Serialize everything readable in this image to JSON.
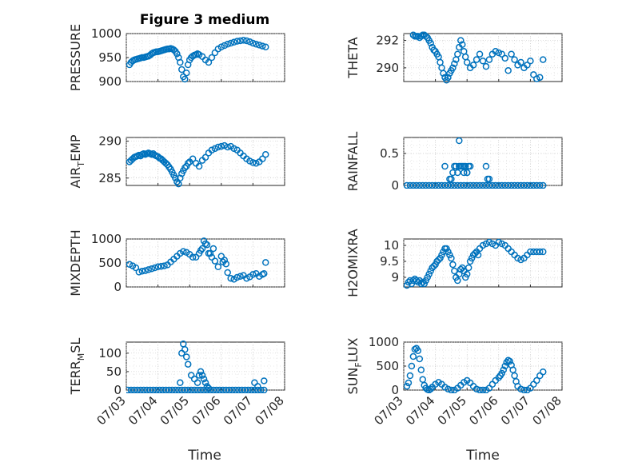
{
  "figure": {
    "title": "Figure 3 medium"
  },
  "colors": {
    "marker": "#0072bd",
    "axes": "#262626",
    "grid": "#bfbfbf"
  },
  "chart_data": [
    {
      "type": "scatter",
      "ylabel": "PRESSURE",
      "title": "Figure 3 medium",
      "xlim": [
        "07/03",
        "07/08"
      ],
      "ylim": [
        900,
        1000
      ],
      "yticks": [
        900,
        950,
        1000
      ],
      "xticks": [
        "07/03",
        "07/04",
        "07/05",
        "07/06",
        "07/07",
        "07/08"
      ],
      "grid": true,
      "x": [
        0.1,
        0.15,
        0.2,
        0.25,
        0.3,
        0.35,
        0.4,
        0.45,
        0.5,
        0.55,
        0.6,
        0.65,
        0.7,
        0.75,
        0.8,
        0.85,
        0.9,
        0.95,
        1.0,
        1.05,
        1.1,
        1.15,
        1.2,
        1.25,
        1.3,
        1.35,
        1.4,
        1.45,
        1.5,
        1.55,
        1.6,
        1.65,
        1.7,
        1.75,
        1.8,
        1.85,
        1.9,
        1.95,
        2.0,
        2.05,
        2.1,
        2.15,
        2.2,
        2.25,
        2.3,
        2.4,
        2.5,
        2.6,
        2.7,
        2.8,
        2.9,
        3.0,
        3.1,
        3.2,
        3.3,
        3.4,
        3.5,
        3.6,
        3.7,
        3.8,
        3.9,
        4.0,
        4.1,
        4.2,
        4.3,
        4.4
      ],
      "y": [
        935,
        940,
        943,
        945,
        946,
        947,
        948,
        949,
        950,
        950,
        951,
        952,
        953,
        955,
        958,
        960,
        961,
        962,
        962,
        963,
        964,
        965,
        966,
        967,
        968,
        968,
        969,
        968,
        966,
        963,
        958,
        950,
        940,
        925,
        910,
        905,
        918,
        935,
        945,
        950,
        953,
        955,
        956,
        958,
        956,
        952,
        945,
        940,
        950,
        960,
        968,
        972,
        975,
        978,
        980,
        982,
        984,
        985,
        986,
        985,
        983,
        980,
        978,
        976,
        974,
        972
      ]
    },
    {
      "type": "scatter",
      "ylabel": "THETA",
      "xlim": [
        "07/03",
        "07/08"
      ],
      "ylim": [
        289,
        292.5
      ],
      "yticks": [
        290,
        292
      ],
      "xticks": [
        "07/03",
        "07/04",
        "07/05",
        "07/06",
        "07/07",
        "07/08"
      ],
      "grid": true,
      "x": [
        0.3,
        0.35,
        0.4,
        0.45,
        0.5,
        0.55,
        0.6,
        0.65,
        0.7,
        0.75,
        0.8,
        0.85,
        0.9,
        0.95,
        1.0,
        1.05,
        1.1,
        1.15,
        1.2,
        1.25,
        1.3,
        1.35,
        1.4,
        1.45,
        1.5,
        1.55,
        1.6,
        1.65,
        1.7,
        1.75,
        1.8,
        1.85,
        1.9,
        1.95,
        2.0,
        2.1,
        2.2,
        2.3,
        2.4,
        2.5,
        2.6,
        2.7,
        2.8,
        2.9,
        3.0,
        3.1,
        3.2,
        3.3,
        3.4,
        3.5,
        3.6,
        3.7,
        3.8,
        3.9,
        4.0,
        4.1,
        4.2,
        4.3,
        4.4
      ],
      "y": [
        292.4,
        292.3,
        292.3,
        292.3,
        292.2,
        292.3,
        292.4,
        292.4,
        292.3,
        292.2,
        292.0,
        291.8,
        291.5,
        291.3,
        291.2,
        291.0,
        290.8,
        290.4,
        290.0,
        289.6,
        289.3,
        289.1,
        289.3,
        289.6,
        289.8,
        290.0,
        290.3,
        290.6,
        291.0,
        291.5,
        292.0,
        291.7,
        291.2,
        290.8,
        290.4,
        290.0,
        290.2,
        290.6,
        291.0,
        290.5,
        290.1,
        290.6,
        291.0,
        291.2,
        291.1,
        291.0,
        290.7,
        289.8,
        291.0,
        290.6,
        290.2,
        290.4,
        290.0,
        290.2,
        290.5,
        289.5,
        289.2,
        289.3,
        290.6
      ]
    },
    {
      "type": "scatter",
      "ylabel": "AIR_TEMP",
      "xlim": [
        "07/03",
        "07/08"
      ],
      "ylim": [
        284,
        290.5
      ],
      "yticks": [
        285,
        290
      ],
      "xticks": [
        "07/03",
        "07/04",
        "07/05",
        "07/06",
        "07/07",
        "07/08"
      ],
      "grid": true,
      "x": [
        0.1,
        0.15,
        0.2,
        0.25,
        0.3,
        0.35,
        0.4,
        0.45,
        0.5,
        0.55,
        0.6,
        0.65,
        0.7,
        0.75,
        0.8,
        0.85,
        0.9,
        0.95,
        1.0,
        1.05,
        1.1,
        1.15,
        1.2,
        1.25,
        1.3,
        1.35,
        1.4,
        1.45,
        1.5,
        1.55,
        1.6,
        1.65,
        1.7,
        1.75,
        1.8,
        1.85,
        1.9,
        1.95,
        2.0,
        2.1,
        2.2,
        2.3,
        2.4,
        2.5,
        2.6,
        2.7,
        2.8,
        2.9,
        3.0,
        3.1,
        3.2,
        3.3,
        3.4,
        3.5,
        3.6,
        3.7,
        3.8,
        3.9,
        4.0,
        4.1,
        4.2,
        4.3,
        4.4
      ],
      "y": [
        287.2,
        287.4,
        287.6,
        287.8,
        287.9,
        288.0,
        288.1,
        288.0,
        288.2,
        288.3,
        288.2,
        288.3,
        288.4,
        288.3,
        288.2,
        288.3,
        288.1,
        288.0,
        287.9,
        287.7,
        287.6,
        287.4,
        287.2,
        287.0,
        286.8,
        286.5,
        286.2,
        285.8,
        285.4,
        285.0,
        284.5,
        284.2,
        285.0,
        285.6,
        286.0,
        286.4,
        286.6,
        287.0,
        287.2,
        287.6,
        287.0,
        286.6,
        287.4,
        287.8,
        288.4,
        288.8,
        289.0,
        289.2,
        289.3,
        289.4,
        289.2,
        289.3,
        289.0,
        288.8,
        288.4,
        288.0,
        287.6,
        287.3,
        287.1,
        287.0,
        287.2,
        287.6,
        288.2
      ]
    },
    {
      "type": "scatter",
      "ylabel": "RAINFALL",
      "xlim": [
        "07/03",
        "07/08"
      ],
      "ylim": [
        0,
        0.75
      ],
      "yticks": [
        0,
        0.5
      ],
      "xticks": [
        "07/03",
        "07/04",
        "07/05",
        "07/06",
        "07/07",
        "07/08"
      ],
      "grid": true,
      "x": [
        0.1,
        0.2,
        0.3,
        0.4,
        0.5,
        0.6,
        0.7,
        0.8,
        0.9,
        1.0,
        1.1,
        1.2,
        1.3,
        1.4,
        1.5,
        1.6,
        1.7,
        1.8,
        1.9,
        2.0,
        2.1,
        2.2,
        2.3,
        2.4,
        2.5,
        2.6,
        2.7,
        2.8,
        2.9,
        3.0,
        3.1,
        3.2,
        3.3,
        3.4,
        3.5,
        3.6,
        3.7,
        3.8,
        3.9,
        4.0,
        4.1,
        4.2,
        4.3,
        4.4,
        1.3,
        1.5,
        1.55,
        1.6,
        1.65,
        1.7,
        1.75,
        1.8,
        1.85,
        1.9,
        1.95,
        2.0,
        2.05,
        2.1,
        1.75,
        1.45,
        2.6,
        2.65,
        2.7,
        1.9,
        2.0
      ],
      "y": [
        0,
        0,
        0,
        0,
        0,
        0,
        0,
        0,
        0,
        0,
        0,
        0,
        0,
        0,
        0,
        0,
        0,
        0,
        0,
        0,
        0,
        0,
        0,
        0,
        0,
        0,
        0,
        0,
        0,
        0,
        0,
        0,
        0,
        0,
        0,
        0,
        0,
        0,
        0,
        0,
        0,
        0,
        0,
        0,
        0.3,
        0.1,
        0.2,
        0.3,
        0.3,
        0.2,
        0.3,
        0.3,
        0.3,
        0.3,
        0.3,
        0.2,
        0.3,
        0.3,
        0.7,
        0.1,
        0.3,
        0.1,
        0.1,
        0.2,
        0.2
      ]
    },
    {
      "type": "scatter",
      "ylabel": "MIXDEPTH",
      "xlim": [
        "07/03",
        "07/08"
      ],
      "ylim": [
        0,
        1000
      ],
      "yticks": [
        0,
        500,
        1000
      ],
      "xticks": [
        "07/03",
        "07/04",
        "07/05",
        "07/06",
        "07/07",
        "07/08"
      ],
      "grid": true,
      "x": [
        0.1,
        0.2,
        0.3,
        0.4,
        0.5,
        0.6,
        0.7,
        0.8,
        0.9,
        1.0,
        1.1,
        1.2,
        1.3,
        1.4,
        1.5,
        1.6,
        1.7,
        1.8,
        1.9,
        2.0,
        2.1,
        2.2,
        2.3,
        2.4,
        2.5,
        2.6,
        2.7,
        2.8,
        2.9,
        3.0,
        3.1,
        3.2,
        3.3,
        3.4,
        3.5,
        3.6,
        3.7,
        3.8,
        3.9,
        4.0,
        4.1,
        4.2,
        4.3,
        4.4,
        2.35,
        2.45,
        2.55,
        2.65,
        2.75,
        3.05,
        3.15,
        4.35
      ],
      "y": [
        470,
        440,
        400,
        310,
        330,
        340,
        360,
        380,
        400,
        420,
        430,
        440,
        460,
        520,
        580,
        640,
        700,
        740,
        720,
        680,
        620,
        620,
        700,
        800,
        900,
        700,
        620,
        540,
        420,
        640,
        560,
        300,
        180,
        160,
        200,
        220,
        240,
        180,
        210,
        260,
        280,
        220,
        260,
        510,
        760,
        960,
        880,
        700,
        800,
        520,
        480,
        280
      ]
    },
    {
      "type": "scatter",
      "ylabel": "H2OMIXRA",
      "xlim": [
        "07/03",
        "07/08"
      ],
      "ylim": [
        8.7,
        10.2
      ],
      "yticks": [
        9,
        9.5,
        10
      ],
      "xticks": [
        "07/03",
        "07/04",
        "07/05",
        "07/06",
        "07/07",
        "07/08"
      ],
      "grid": true,
      "x": [
        0.1,
        0.15,
        0.2,
        0.25,
        0.3,
        0.35,
        0.4,
        0.45,
        0.5,
        0.55,
        0.6,
        0.65,
        0.7,
        0.75,
        0.8,
        0.85,
        0.9,
        0.95,
        1.0,
        1.05,
        1.1,
        1.15,
        1.2,
        1.25,
        1.3,
        1.35,
        1.4,
        1.45,
        1.5,
        1.55,
        1.6,
        1.65,
        1.7,
        1.75,
        1.8,
        1.85,
        1.9,
        1.95,
        2.0,
        2.05,
        2.1,
        2.15,
        2.2,
        2.25,
        2.3,
        2.35,
        2.4,
        2.5,
        2.6,
        2.7,
        2.8,
        2.9,
        3.0,
        3.1,
        3.2,
        3.3,
        3.4,
        3.5,
        3.6,
        3.7,
        3.8,
        3.9,
        4.0,
        4.1,
        4.2,
        4.3,
        4.4
      ],
      "y": [
        8.75,
        8.85,
        8.9,
        8.8,
        8.9,
        8.95,
        8.9,
        8.85,
        8.9,
        8.8,
        8.85,
        8.8,
        8.9,
        9.0,
        9.1,
        9.2,
        9.3,
        9.35,
        9.4,
        9.5,
        9.55,
        9.6,
        9.7,
        9.8,
        9.9,
        9.9,
        9.8,
        9.7,
        9.6,
        9.4,
        9.2,
        9.0,
        8.9,
        9.1,
        9.25,
        9.3,
        9.2,
        9.0,
        9.1,
        9.3,
        9.5,
        9.6,
        9.7,
        9.75,
        9.8,
        9.7,
        9.9,
        10.0,
        10.05,
        10.1,
        10.05,
        10.0,
        10.1,
        10.05,
        10.0,
        9.9,
        9.8,
        9.7,
        9.6,
        9.55,
        9.6,
        9.7,
        9.8,
        9.8,
        9.8,
        9.8,
        9.8
      ]
    },
    {
      "type": "scatter",
      "ylabel": "TERR_MSL",
      "xlim": [
        "07/03",
        "07/08"
      ],
      "ylim": [
        0,
        130
      ],
      "yticks": [
        0,
        50,
        100
      ],
      "xticks": [
        "07/03",
        "07/04",
        "07/05",
        "07/06",
        "07/07",
        "07/08"
      ],
      "grid": true,
      "x": [
        0.05,
        0.15,
        0.25,
        0.35,
        0.45,
        0.55,
        0.65,
        0.75,
        0.85,
        0.95,
        1.05,
        1.15,
        1.25,
        1.35,
        1.45,
        1.55,
        1.65,
        1.75,
        1.85,
        1.95,
        2.05,
        2.15,
        2.25,
        2.35,
        2.45,
        2.55,
        2.65,
        2.75,
        2.85,
        2.95,
        3.05,
        3.15,
        3.25,
        3.35,
        3.45,
        3.55,
        3.65,
        3.75,
        3.85,
        3.95,
        4.05,
        4.15,
        4.25,
        4.35,
        1.7,
        1.75,
        1.8,
        1.85,
        1.9,
        1.95,
        2.05,
        2.15,
        2.25,
        2.3,
        2.35,
        2.4,
        2.45,
        2.5,
        2.55,
        2.6,
        4.05,
        4.15,
        4.35
      ],
      "y": [
        0,
        0,
        0,
        0,
        0,
        0,
        0,
        0,
        0,
        0,
        0,
        0,
        0,
        0,
        0,
        0,
        0,
        0,
        0,
        0,
        0,
        0,
        0,
        0,
        0,
        0,
        0,
        0,
        0,
        0,
        0,
        0,
        0,
        0,
        0,
        0,
        0,
        0,
        0,
        0,
        0,
        0,
        0,
        0,
        20,
        100,
        125,
        110,
        90,
        70,
        40,
        30,
        20,
        40,
        50,
        40,
        30,
        20,
        10,
        5,
        20,
        10,
        25
      ]
    },
    {
      "type": "scatter",
      "ylabel": "SUN_FLUX",
      "xlim": [
        "07/03",
        "07/08"
      ],
      "ylim": [
        0,
        1000
      ],
      "yticks": [
        0,
        500,
        1000
      ],
      "xticks": [
        "07/03",
        "07/04",
        "07/05",
        "07/06",
        "07/07",
        "07/08"
      ],
      "grid": true,
      "x": [
        0.1,
        0.15,
        0.2,
        0.25,
        0.3,
        0.35,
        0.4,
        0.45,
        0.5,
        0.55,
        0.6,
        0.65,
        0.7,
        0.75,
        0.8,
        0.85,
        0.9,
        1.0,
        1.1,
        1.2,
        1.3,
        1.4,
        1.5,
        1.6,
        1.7,
        1.8,
        1.9,
        2.0,
        2.1,
        2.2,
        2.3,
        2.4,
        2.5,
        2.6,
        2.7,
        2.8,
        2.9,
        3.0,
        3.05,
        3.1,
        3.15,
        3.2,
        3.25,
        3.3,
        3.35,
        3.4,
        3.45,
        3.5,
        3.55,
        3.6,
        3.7,
        3.8,
        3.9,
        4.0,
        4.1,
        4.2,
        4.3,
        4.4
      ],
      "y": [
        80,
        150,
        300,
        500,
        700,
        850,
        870,
        820,
        650,
        420,
        220,
        100,
        40,
        10,
        0,
        20,
        60,
        120,
        160,
        120,
        60,
        20,
        0,
        0,
        40,
        100,
        160,
        200,
        150,
        80,
        20,
        0,
        0,
        0,
        40,
        120,
        200,
        260,
        300,
        350,
        420,
        500,
        580,
        620,
        600,
        520,
        420,
        300,
        180,
        80,
        20,
        0,
        0,
        40,
        120,
        200,
        300,
        380
      ]
    }
  ],
  "axes_labels": {
    "xlabel": "Time"
  }
}
